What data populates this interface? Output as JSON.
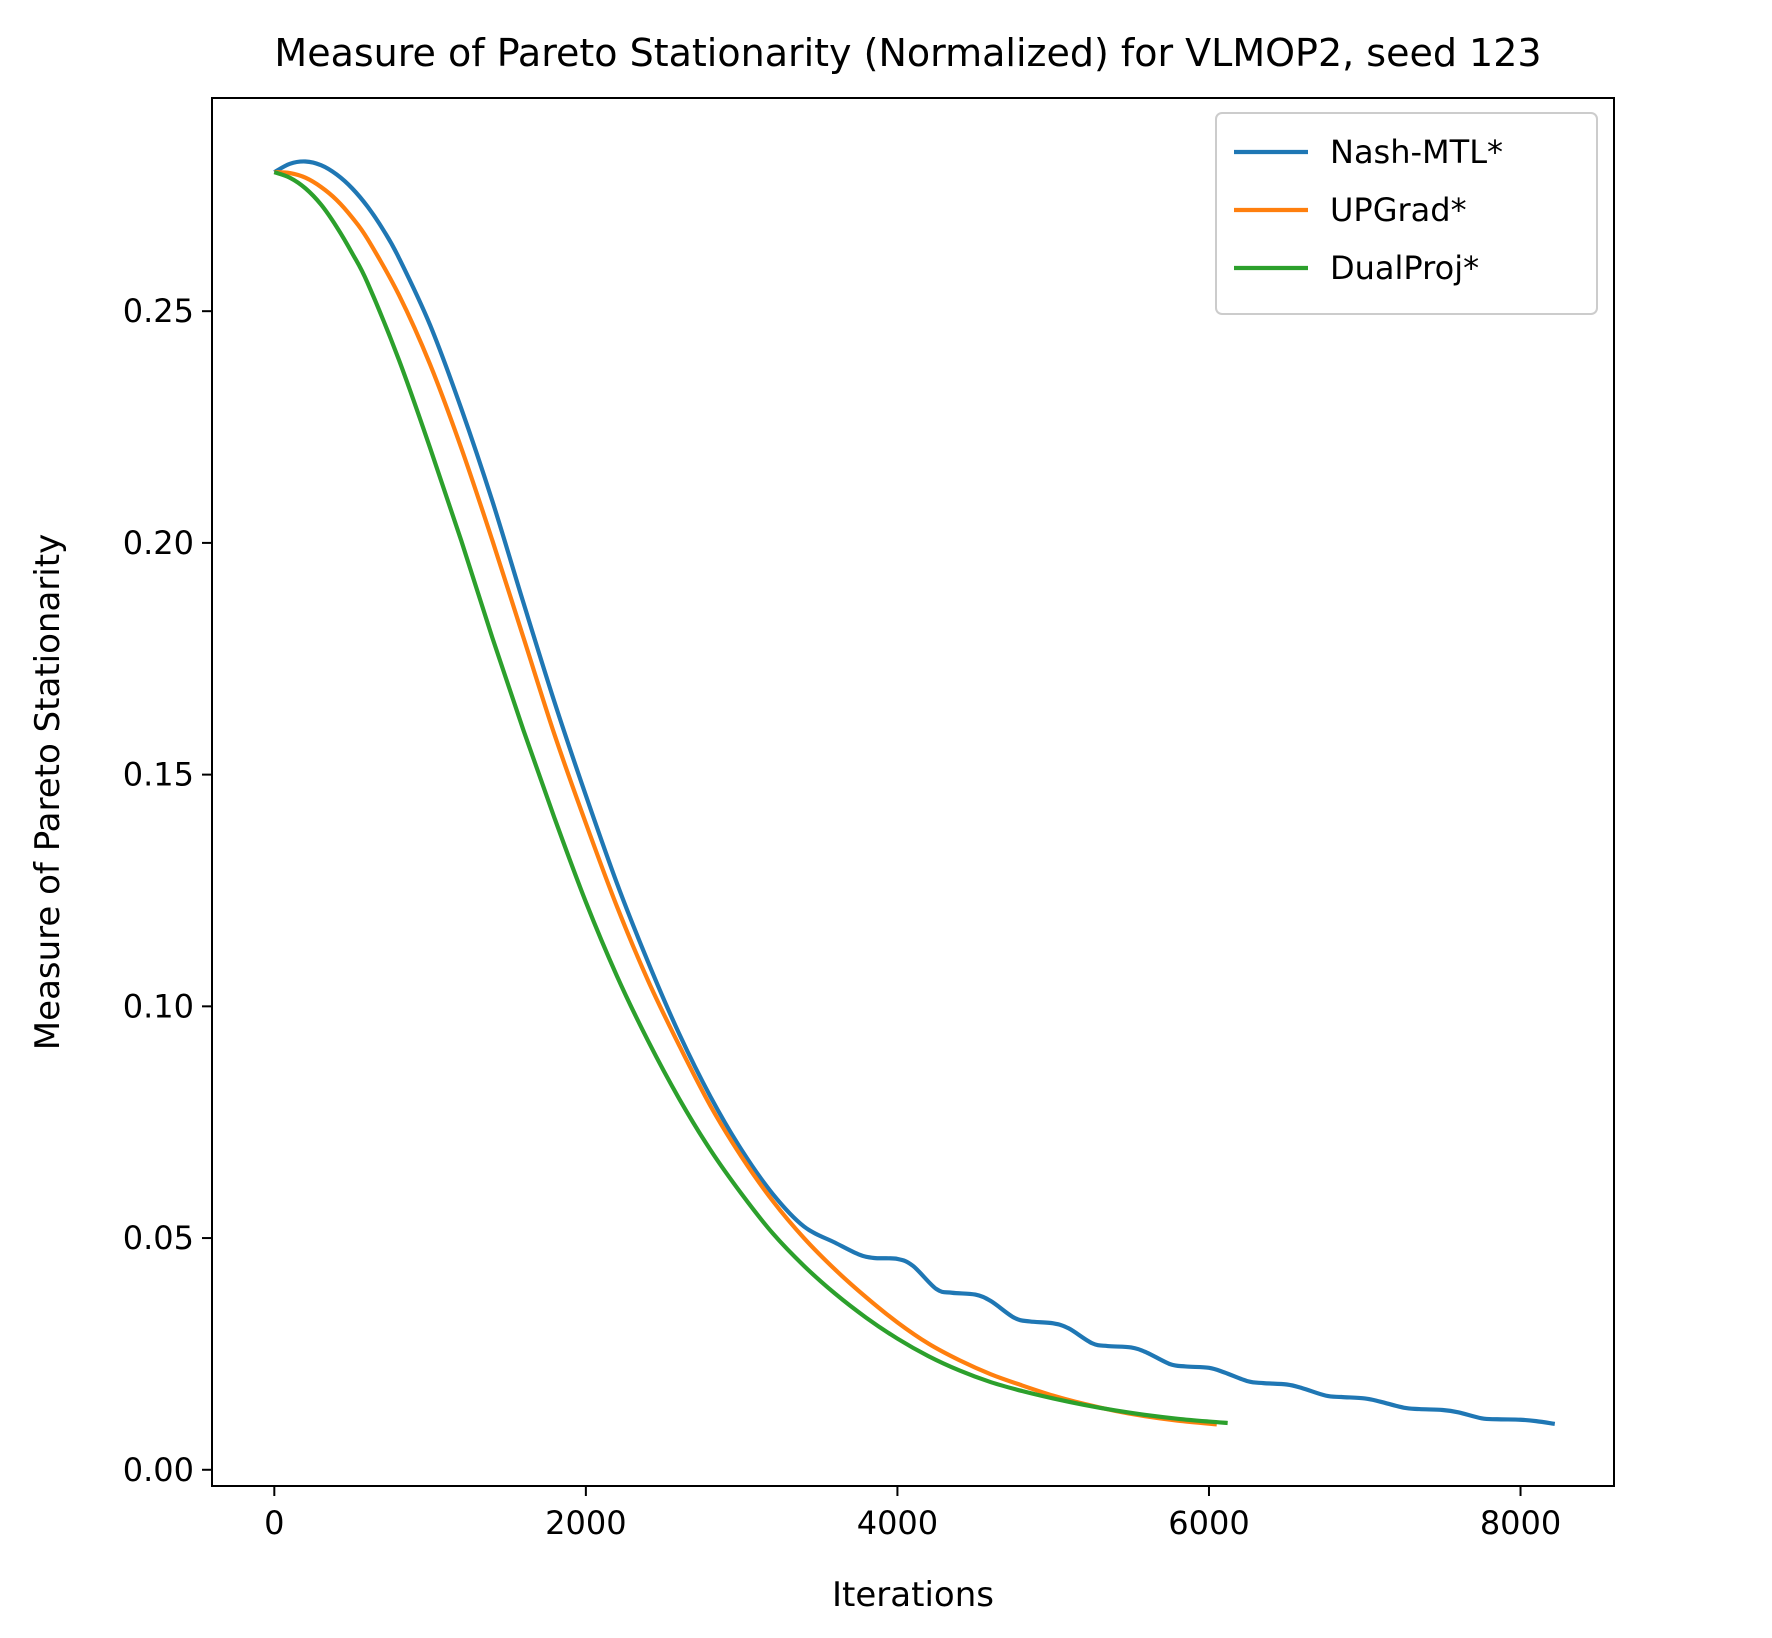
{
  "chart_data": {
    "type": "line",
    "title": "Measure of Pareto Stationarity (Normalized) for VLMOP2, seed 123",
    "xlabel": "Iterations",
    "ylabel": "Measure of Pareto Stationarity",
    "xlim": [
      -400,
      8600
    ],
    "ylim": [
      -0.0035,
      0.296
    ],
    "xticks": [
      0,
      2000,
      4000,
      6000,
      8000
    ],
    "xtick_labels": [
      "0",
      "2000",
      "4000",
      "6000",
      "8000"
    ],
    "yticks": [
      0.0,
      0.05,
      0.1,
      0.15,
      0.2,
      0.25
    ],
    "ytick_labels": [
      "0.00",
      "0.05",
      "0.10",
      "0.15",
      "0.20",
      "0.25"
    ],
    "grid": false,
    "legend_position": "top-right",
    "series": [
      {
        "name": "Nash-MTL*",
        "color": "#1f77b4",
        "x": [
          0,
          100,
          200,
          300,
          400,
          500,
          600,
          700,
          800,
          1000,
          1200,
          1400,
          1600,
          1800,
          2000,
          2200,
          2400,
          2600,
          2800,
          3000,
          3200,
          3400,
          3600,
          3750,
          3850,
          4000,
          4100,
          4250,
          4350,
          4500,
          4600,
          4750,
          4850,
          5000,
          5100,
          5250,
          5350,
          5500,
          5600,
          5750,
          5850,
          6000,
          6100,
          6250,
          6350,
          6500,
          6600,
          6750,
          6850,
          7000,
          7100,
          7250,
          7350,
          7500,
          7600,
          7750,
          7850,
          8000,
          8100,
          8220
        ],
        "y": [
          0.28,
          0.2818,
          0.2823,
          0.2815,
          0.2795,
          0.2765,
          0.2725,
          0.2675,
          0.2615,
          0.247,
          0.229,
          0.209,
          0.187,
          0.1655,
          0.1455,
          0.1265,
          0.1095,
          0.094,
          0.0805,
          0.069,
          0.0595,
          0.0525,
          0.049,
          0.0465,
          0.0457,
          0.0455,
          0.044,
          0.039,
          0.0382,
          0.0378,
          0.0364,
          0.0328,
          0.032,
          0.0316,
          0.0305,
          0.0273,
          0.0267,
          0.0264,
          0.0253,
          0.0228,
          0.0223,
          0.022,
          0.021,
          0.0191,
          0.0187,
          0.0184,
          0.0176,
          0.016,
          0.0157,
          0.0154,
          0.0147,
          0.0134,
          0.0131,
          0.0129,
          0.0124,
          0.0111,
          0.0109,
          0.0108,
          0.0105,
          0.0099
        ]
      },
      {
        "name": "UPGrad*",
        "color": "#ff7f0e",
        "x": [
          0,
          100,
          200,
          300,
          400,
          500,
          600,
          800,
          1000,
          1200,
          1400,
          1600,
          1800,
          2000,
          2200,
          2400,
          2600,
          2800,
          3000,
          3200,
          3400,
          3600,
          3800,
          4000,
          4200,
          4400,
          4600,
          4800,
          5000,
          5200,
          5400,
          5600,
          5800,
          6050
        ],
        "y": [
          0.28,
          0.2798,
          0.2788,
          0.2768,
          0.274,
          0.2702,
          0.2655,
          0.2535,
          0.2385,
          0.2205,
          0.2005,
          0.1795,
          0.1585,
          0.1395,
          0.1215,
          0.1055,
          0.0915,
          0.0785,
          0.0675,
          0.058,
          0.05,
          0.0432,
          0.0372,
          0.0318,
          0.0272,
          0.0236,
          0.0206,
          0.0182,
          0.016,
          0.0142,
          0.0127,
          0.0115,
          0.0106,
          0.0098
        ]
      },
      {
        "name": "DualProj*",
        "color": "#2ca02c",
        "x": [
          0,
          100,
          200,
          300,
          400,
          500,
          600,
          800,
          1000,
          1200,
          1400,
          1600,
          1800,
          2000,
          2200,
          2400,
          2600,
          2800,
          3000,
          3200,
          3400,
          3600,
          3800,
          4000,
          4200,
          4400,
          4600,
          4800,
          5000,
          5200,
          5400,
          5600,
          5800,
          6000,
          6120
        ],
        "y": [
          0.28,
          0.2788,
          0.2765,
          0.273,
          0.2682,
          0.2625,
          0.256,
          0.2395,
          0.2205,
          0.2005,
          0.1795,
          0.1595,
          0.1405,
          0.1225,
          0.1065,
          0.0925,
          0.08,
          0.069,
          0.0595,
          0.051,
          0.044,
          0.038,
          0.0328,
          0.0283,
          0.0245,
          0.0214,
          0.0189,
          0.017,
          0.0154,
          0.014,
          0.0128,
          0.0118,
          0.011,
          0.0104,
          0.0101
        ]
      }
    ]
  }
}
